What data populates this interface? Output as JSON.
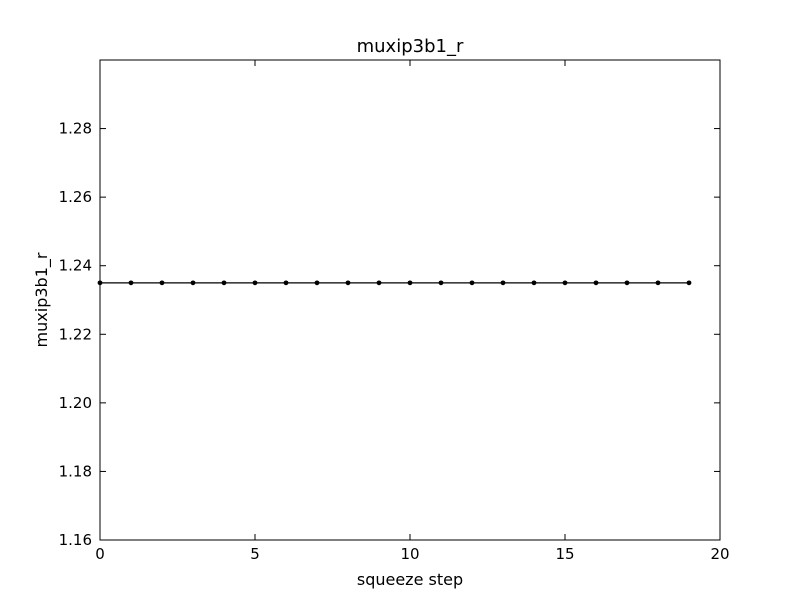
{
  "chart_data": {
    "type": "line",
    "title": "muxip3b1_r",
    "xlabel": "squeeze step",
    "ylabel": "muxip3b1_r",
    "xlim": [
      0,
      20
    ],
    "ylim": [
      1.16,
      1.3
    ],
    "x_ticks": [
      0,
      5,
      10,
      15,
      20
    ],
    "x_tick_labels": [
      "0",
      "5",
      "10",
      "15",
      "20"
    ],
    "y_ticks": [
      1.16,
      1.18,
      1.2,
      1.22,
      1.24,
      1.26,
      1.28
    ],
    "y_tick_labels": [
      "1.16",
      "1.18",
      "1.20",
      "1.22",
      "1.24",
      "1.26",
      "1.28"
    ],
    "grid": false,
    "legend": "none",
    "series": [
      {
        "color": "#000000",
        "marker": "dot",
        "x": [
          0,
          1,
          2,
          3,
          4,
          5,
          6,
          7,
          8,
          9,
          10,
          11,
          12,
          13,
          14,
          15,
          16,
          17,
          18,
          19
        ],
        "y": [
          1.235,
          1.235,
          1.235,
          1.235,
          1.235,
          1.235,
          1.235,
          1.235,
          1.235,
          1.235,
          1.235,
          1.235,
          1.235,
          1.235,
          1.235,
          1.235,
          1.235,
          1.235,
          1.235,
          1.235
        ]
      }
    ]
  }
}
